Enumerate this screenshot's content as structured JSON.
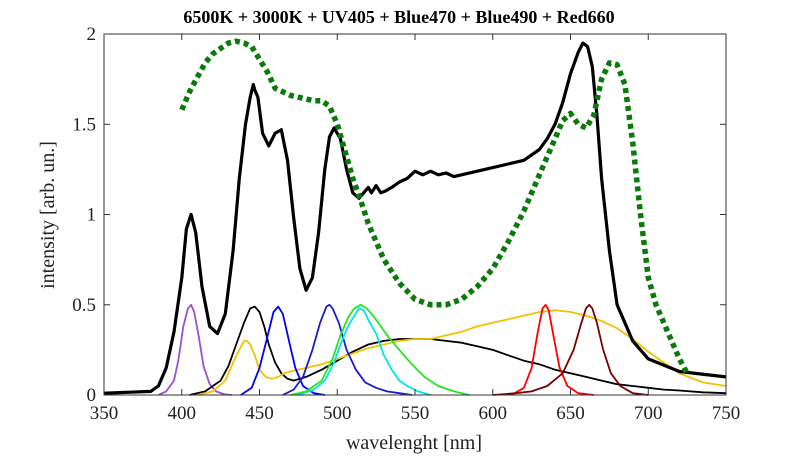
{
  "chart_data": {
    "type": "line",
    "title": "6500K + 3000K + UV405 + Blue470 + Blue490 + Red660",
    "xlabel": "wavelenght [nm]",
    "ylabel": "intensity [arb. un.]",
    "xlim": [
      350,
      750
    ],
    "ylim": [
      0,
      2
    ],
    "xticks": [
      350,
      400,
      450,
      500,
      550,
      600,
      650,
      700,
      750
    ],
    "yticks": [
      0,
      0.5,
      1,
      1.5,
      2
    ],
    "grid": false,
    "legend": "none",
    "series": [
      {
        "color": "#000000",
        "style": "solid-thick",
        "x": [
          350,
          380,
          385,
          390,
          395,
          400,
          403,
          406,
          409,
          413,
          418,
          423,
          428,
          433,
          437,
          441,
          444,
          446,
          447,
          449,
          452,
          456,
          460,
          464,
          468,
          472,
          476,
          480,
          484,
          488,
          492,
          495,
          498,
          502,
          506,
          510,
          514,
          517,
          520,
          522,
          525,
          528,
          531,
          535,
          540,
          545,
          550,
          555,
          560,
          565,
          570,
          575,
          580,
          590,
          600,
          610,
          620,
          630,
          635,
          640,
          645,
          650,
          655,
          658,
          661,
          664,
          667,
          670,
          675,
          680,
          690,
          700,
          720,
          740,
          750
        ],
        "y": [
          0.01,
          0.02,
          0.05,
          0.15,
          0.35,
          0.65,
          0.92,
          1.0,
          0.9,
          0.6,
          0.38,
          0.34,
          0.45,
          0.8,
          1.2,
          1.5,
          1.65,
          1.72,
          1.69,
          1.65,
          1.45,
          1.38,
          1.45,
          1.47,
          1.3,
          0.98,
          0.7,
          0.58,
          0.65,
          0.9,
          1.25,
          1.43,
          1.48,
          1.42,
          1.25,
          1.12,
          1.09,
          1.12,
          1.15,
          1.12,
          1.16,
          1.12,
          1.13,
          1.15,
          1.18,
          1.2,
          1.24,
          1.22,
          1.24,
          1.22,
          1.23,
          1.21,
          1.22,
          1.24,
          1.26,
          1.28,
          1.3,
          1.36,
          1.42,
          1.5,
          1.62,
          1.78,
          1.9,
          1.95,
          1.93,
          1.82,
          1.55,
          1.2,
          0.8,
          0.5,
          0.3,
          0.2,
          0.13,
          0.11,
          0.1
        ]
      },
      {
        "color": "#0b7a0b",
        "style": "dotted-thick",
        "x": [
          400,
          405,
          410,
          415,
          420,
          425,
          430,
          435,
          440,
          445,
          450,
          455,
          460,
          465,
          470,
          475,
          480,
          485,
          490,
          495,
          500,
          505,
          510,
          515,
          520,
          525,
          530,
          540,
          550,
          560,
          570,
          580,
          590,
          600,
          610,
          620,
          630,
          640,
          645,
          650,
          655,
          660,
          665,
          670,
          675,
          680,
          685,
          690,
          695,
          700,
          705,
          710,
          715,
          720,
          725
        ],
        "y": [
          1.58,
          1.68,
          1.76,
          1.84,
          1.89,
          1.92,
          1.95,
          1.96,
          1.95,
          1.93,
          1.86,
          1.79,
          1.7,
          1.68,
          1.66,
          1.65,
          1.64,
          1.63,
          1.63,
          1.6,
          1.5,
          1.35,
          1.2,
          1.08,
          0.95,
          0.85,
          0.75,
          0.62,
          0.53,
          0.5,
          0.5,
          0.53,
          0.6,
          0.7,
          0.85,
          1.02,
          1.22,
          1.42,
          1.52,
          1.56,
          1.5,
          1.48,
          1.55,
          1.75,
          1.84,
          1.83,
          1.72,
          1.4,
          1.0,
          0.65,
          0.5,
          0.4,
          0.3,
          0.2,
          0.12
        ]
      },
      {
        "color": "#9b4fd4",
        "style": "solid",
        "x": [
          385,
          390,
          395,
          398,
          401,
          404,
          406,
          408,
          411,
          414,
          418,
          422,
          427,
          432
        ],
        "y": [
          0,
          0.02,
          0.08,
          0.2,
          0.38,
          0.48,
          0.5,
          0.46,
          0.32,
          0.16,
          0.06,
          0.02,
          0.005,
          0
        ]
      },
      {
        "color": "#000000",
        "style": "solid",
        "x": [
          405,
          415,
          425,
          430,
          435,
          440,
          444,
          447,
          450,
          453,
          456,
          460,
          464,
          468,
          472,
          476,
          480,
          490,
          500,
          510,
          520,
          530,
          540,
          550,
          560,
          570,
          580,
          590,
          600,
          610,
          620,
          630,
          640,
          650,
          660,
          670,
          680,
          690,
          700,
          710,
          720,
          735,
          750
        ],
        "y": [
          0,
          0.02,
          0.08,
          0.16,
          0.28,
          0.4,
          0.48,
          0.49,
          0.46,
          0.38,
          0.28,
          0.18,
          0.12,
          0.09,
          0.08,
          0.09,
          0.1,
          0.14,
          0.19,
          0.24,
          0.28,
          0.3,
          0.31,
          0.31,
          0.31,
          0.3,
          0.29,
          0.27,
          0.25,
          0.22,
          0.19,
          0.17,
          0.14,
          0.12,
          0.1,
          0.08,
          0.06,
          0.05,
          0.04,
          0.03,
          0.025,
          0.015,
          0.01
        ]
      },
      {
        "color": "#f2c200",
        "style": "solid",
        "x": [
          410,
          420,
          428,
          433,
          437,
          440,
          442,
          444,
          447,
          450,
          454,
          458,
          462,
          466,
          470,
          480,
          490,
          500,
          510,
          520,
          530,
          540,
          550,
          560,
          570,
          580,
          590,
          600,
          610,
          620,
          630,
          640,
          650,
          660,
          670,
          680,
          690,
          700,
          710,
          720,
          735,
          750
        ],
        "y": [
          0,
          0.02,
          0.08,
          0.18,
          0.25,
          0.3,
          0.3,
          0.28,
          0.22,
          0.14,
          0.1,
          0.09,
          0.1,
          0.12,
          0.13,
          0.15,
          0.17,
          0.2,
          0.23,
          0.26,
          0.28,
          0.3,
          0.31,
          0.31,
          0.33,
          0.35,
          0.38,
          0.4,
          0.42,
          0.44,
          0.46,
          0.47,
          0.46,
          0.44,
          0.41,
          0.37,
          0.31,
          0.24,
          0.18,
          0.12,
          0.07,
          0.05
        ]
      },
      {
        "color": "#0000ff",
        "style": "solid",
        "x": [
          438,
          445,
          450,
          455,
          459,
          462,
          465,
          469,
          473,
          478,
          485,
          492
        ],
        "y": [
          0,
          0.04,
          0.15,
          0.32,
          0.46,
          0.49,
          0.45,
          0.3,
          0.15,
          0.05,
          0.01,
          0
        ]
      },
      {
        "color": "#1c1cc8",
        "style": "solid",
        "x": [
          465,
          472,
          478,
          484,
          489,
          493,
          495,
          497,
          501,
          506,
          512,
          518,
          525,
          532,
          540,
          548
        ],
        "y": [
          0,
          0.03,
          0.1,
          0.25,
          0.4,
          0.49,
          0.5,
          0.48,
          0.4,
          0.25,
          0.14,
          0.07,
          0.04,
          0.02,
          0.01,
          0
        ]
      },
      {
        "color": "#00e5e5",
        "style": "solid",
        "x": [
          475,
          485,
          492,
          498,
          503,
          507,
          511,
          514,
          517,
          521,
          525,
          530,
          535,
          540,
          545,
          552,
          560
        ],
        "y": [
          0,
          0.03,
          0.08,
          0.18,
          0.3,
          0.38,
          0.44,
          0.48,
          0.47,
          0.4,
          0.34,
          0.22,
          0.14,
          0.08,
          0.05,
          0.02,
          0
        ]
      },
      {
        "color": "#22e622",
        "style": "solid",
        "x": [
          470,
          480,
          490,
          497,
          502,
          507,
          511,
          515,
          519,
          523,
          528,
          533,
          540,
          548,
          556,
          565,
          575,
          585
        ],
        "y": [
          0,
          0.02,
          0.08,
          0.2,
          0.33,
          0.43,
          0.48,
          0.5,
          0.48,
          0.44,
          0.38,
          0.32,
          0.25,
          0.17,
          0.1,
          0.05,
          0.02,
          0
        ]
      },
      {
        "color": "#ff0000",
        "style": "solid",
        "x": [
          612,
          620,
          625,
          629,
          632,
          634,
          636,
          639,
          643,
          648,
          655,
          665
        ],
        "y": [
          0,
          0.04,
          0.15,
          0.35,
          0.48,
          0.5,
          0.47,
          0.33,
          0.15,
          0.05,
          0.01,
          0
        ]
      },
      {
        "color": "#7a0000",
        "style": "solid",
        "x": [
          600,
          615,
          625,
          635,
          645,
          652,
          657,
          660,
          662,
          664,
          667,
          671,
          676,
          682,
          690,
          700
        ],
        "y": [
          0,
          0.01,
          0.02,
          0.05,
          0.12,
          0.25,
          0.4,
          0.48,
          0.5,
          0.48,
          0.4,
          0.25,
          0.12,
          0.05,
          0.01,
          0
        ]
      }
    ]
  }
}
